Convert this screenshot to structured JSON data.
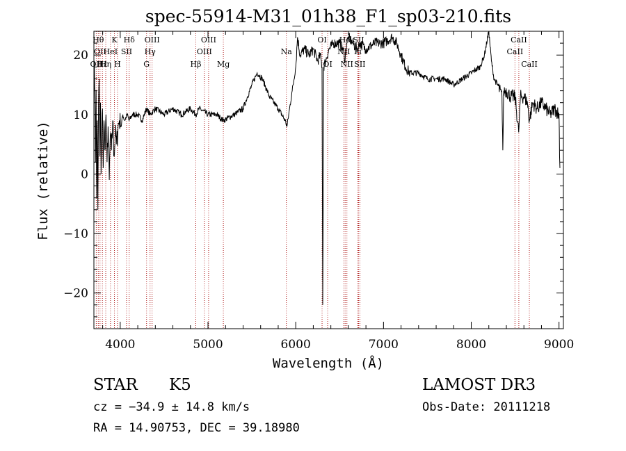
{
  "chart_data": {
    "type": "line",
    "title": "spec-55914-M31_01h38_F1_sp03-210.fits",
    "xlabel": "Wavelength (Å)",
    "ylabel": "Flux (relative)",
    "xlim": [
      3700,
      9050
    ],
    "ylim": [
      -26,
      24
    ],
    "x_ticks": [
      4000,
      5000,
      6000,
      7000,
      8000,
      9000
    ],
    "x_tick_labels": [
      "4000",
      "5000",
      "6000",
      "7000",
      "8000",
      "9000"
    ],
    "y_ticks": [
      -20,
      -10,
      0,
      10,
      20
    ],
    "y_tick_labels": [
      "−20",
      "−10",
      "0",
      "10",
      "20"
    ],
    "grid": false,
    "series": [
      {
        "line_color": "#000000",
        "anchors": [
          [
            3700,
            12
          ],
          [
            3705,
            19
          ],
          [
            3712,
            14
          ],
          [
            3718,
            2
          ],
          [
            3725,
            14
          ],
          [
            3732,
            -4
          ],
          [
            3738,
            9
          ],
          [
            3745,
            -6
          ],
          [
            3752,
            11
          ],
          [
            3760,
            16
          ],
          [
            3768,
            3
          ],
          [
            3775,
            12
          ],
          [
            3782,
            0
          ],
          [
            3790,
            7
          ],
          [
            3798,
            11
          ],
          [
            3806,
            1
          ],
          [
            3815,
            9
          ],
          [
            3825,
            4
          ],
          [
            3838,
            10
          ],
          [
            3850,
            2
          ],
          [
            3862,
            8
          ],
          [
            3875,
            -1
          ],
          [
            3888,
            7
          ],
          [
            3900,
            4
          ],
          [
            3915,
            9
          ],
          [
            3930,
            3
          ],
          [
            3945,
            7
          ],
          [
            3960,
            5
          ],
          [
            3975,
            8
          ],
          [
            3990,
            9
          ],
          [
            4010,
            8
          ],
          [
            4030,
            10
          ],
          [
            4050,
            9
          ],
          [
            4080,
            10
          ],
          [
            4100,
            9
          ],
          [
            4140,
            10
          ],
          [
            4200,
            10
          ],
          [
            4250,
            9
          ],
          [
            4300,
            11
          ],
          [
            4340,
            10
          ],
          [
            4400,
            11
          ],
          [
            4500,
            10
          ],
          [
            4600,
            11
          ],
          [
            4700,
            10
          ],
          [
            4800,
            11
          ],
          [
            4860,
            10
          ],
          [
            4900,
            11
          ],
          [
            5000,
            10
          ],
          [
            5100,
            10
          ],
          [
            5175,
            9
          ],
          [
            5300,
            10
          ],
          [
            5400,
            11
          ],
          [
            5450,
            13
          ],
          [
            5500,
            15
          ],
          [
            5560,
            17
          ],
          [
            5620,
            16
          ],
          [
            5700,
            13
          ],
          [
            5800,
            11
          ],
          [
            5880,
            9
          ],
          [
            5900,
            8
          ],
          [
            5920,
            10
          ],
          [
            5960,
            14
          ],
          [
            6000,
            18
          ],
          [
            6020,
            23
          ],
          [
            6050,
            20
          ],
          [
            6100,
            21
          ],
          [
            6150,
            20
          ],
          [
            6200,
            21
          ],
          [
            6250,
            19
          ],
          [
            6280,
            20
          ],
          [
            6300,
            18
          ],
          [
            6308,
            -22
          ],
          [
            6318,
            18
          ],
          [
            6340,
            19
          ],
          [
            6380,
            21
          ],
          [
            6430,
            22
          ],
          [
            6500,
            22
          ],
          [
            6540,
            21
          ],
          [
            6562,
            19
          ],
          [
            6580,
            22
          ],
          [
            6600,
            23
          ],
          [
            6650,
            22
          ],
          [
            6700,
            21
          ],
          [
            6730,
            22
          ],
          [
            6800,
            21
          ],
          [
            6900,
            22
          ],
          [
            7000,
            22
          ],
          [
            7100,
            23
          ],
          [
            7150,
            22
          ],
          [
            7200,
            20
          ],
          [
            7250,
            18
          ],
          [
            7300,
            17
          ],
          [
            7400,
            17
          ],
          [
            7500,
            16
          ],
          [
            7600,
            16
          ],
          [
            7700,
            16
          ],
          [
            7800,
            15
          ],
          [
            7900,
            16
          ],
          [
            8000,
            17
          ],
          [
            8100,
            18
          ],
          [
            8150,
            20
          ],
          [
            8200,
            24
          ],
          [
            8230,
            19
          ],
          [
            8260,
            16
          ],
          [
            8300,
            15
          ],
          [
            8350,
            13
          ],
          [
            8360,
            4
          ],
          [
            8370,
            14
          ],
          [
            8400,
            14
          ],
          [
            8450,
            13
          ],
          [
            8500,
            13
          ],
          [
            8540,
            7
          ],
          [
            8560,
            13
          ],
          [
            8600,
            13
          ],
          [
            8640,
            12
          ],
          [
            8662,
            9
          ],
          [
            8700,
            12
          ],
          [
            8750,
            11
          ],
          [
            8800,
            12
          ],
          [
            8850,
            11
          ],
          [
            8900,
            10
          ],
          [
            8950,
            11
          ],
          [
            9000,
            10
          ],
          [
            9010,
            1
          ]
        ]
      }
    ],
    "lines": [
      {
        "wavelength": 3727,
        "labels": [
          "OII"
        ],
        "rows": [
          3
        ]
      },
      {
        "wavelength": 3750,
        "labels": [
          "Hθ"
        ],
        "rows": [
          1
        ]
      },
      {
        "wavelength": 3770,
        "labels": [
          "OII"
        ],
        "rows": [
          2
        ]
      },
      {
        "wavelength": 3797,
        "labels": [
          "Hε"
        ],
        "rows": [
          3
        ]
      },
      {
        "wavelength": 3835,
        "labels": [
          "Hη"
        ],
        "rows": [
          3
        ]
      },
      {
        "wavelength": 3889,
        "labels": [
          "HeI"
        ],
        "rows": [
          2
        ]
      },
      {
        "wavelength": 3934,
        "labels": [
          "K"
        ],
        "rows": [
          1
        ]
      },
      {
        "wavelength": 3969,
        "labels": [
          "H"
        ],
        "rows": [
          3
        ]
      },
      {
        "wavelength": 4072,
        "labels": [
          "SII"
        ],
        "rows": [
          2
        ]
      },
      {
        "wavelength": 4102,
        "labels": [
          "Hδ"
        ],
        "rows": [
          1
        ]
      },
      {
        "wavelength": 4300,
        "labels": [
          "G"
        ],
        "rows": [
          3
        ]
      },
      {
        "wavelength": 4340,
        "labels": [
          "Hγ"
        ],
        "rows": [
          2
        ]
      },
      {
        "wavelength": 4363,
        "labels": [
          "OIII"
        ],
        "rows": [
          1
        ]
      },
      {
        "wavelength": 4861,
        "labels": [
          "Hβ"
        ],
        "rows": [
          3
        ]
      },
      {
        "wavelength": 4959,
        "labels": [
          "OIII"
        ],
        "rows": [
          2
        ]
      },
      {
        "wavelength": 5007,
        "labels": [
          "OIII"
        ],
        "rows": [
          1
        ]
      },
      {
        "wavelength": 5175,
        "labels": [
          "Mg"
        ],
        "rows": [
          3
        ]
      },
      {
        "wavelength": 5893,
        "labels": [
          "Na"
        ],
        "rows": [
          2
        ]
      },
      {
        "wavelength": 6300,
        "labels": [
          "OI"
        ],
        "rows": [
          1
        ]
      },
      {
        "wavelength": 6364,
        "labels": [
          "OI"
        ],
        "rows": [
          3
        ]
      },
      {
        "wavelength": 6548,
        "labels": [
          "NII"
        ],
        "rows": [
          2
        ]
      },
      {
        "wavelength": 6563,
        "labels": [
          "Hα"
        ],
        "rows": [
          1
        ]
      },
      {
        "wavelength": 6583,
        "labels": [
          "NII"
        ],
        "rows": [
          3
        ]
      },
      {
        "wavelength": 6707,
        "labels": [
          "Li"
        ],
        "rows": [
          2
        ]
      },
      {
        "wavelength": 6716,
        "labels": [
          "SII"
        ],
        "rows": [
          1
        ]
      },
      {
        "wavelength": 6731,
        "labels": [
          "SII"
        ],
        "rows": [
          3
        ]
      },
      {
        "wavelength": 8498,
        "labels": [
          "CaII"
        ],
        "rows": [
          2
        ]
      },
      {
        "wavelength": 8542,
        "labels": [
          "CaII"
        ],
        "rows": [
          1
        ]
      },
      {
        "wavelength": 8662,
        "labels": [
          "CaII"
        ],
        "rows": [
          3
        ]
      }
    ],
    "colors": {
      "curve": "#000000",
      "line_markers": "#b22222",
      "axes": "#000000"
    }
  },
  "info": {
    "object_class": "STAR",
    "subclass": "K5",
    "survey": "LAMOST DR3",
    "cz": "cz = −34.9 ± 14.8 km/s",
    "obs_date": "Obs-Date: 20111218",
    "coords": "RA =  14.90753, DEC =  39.18980"
  }
}
